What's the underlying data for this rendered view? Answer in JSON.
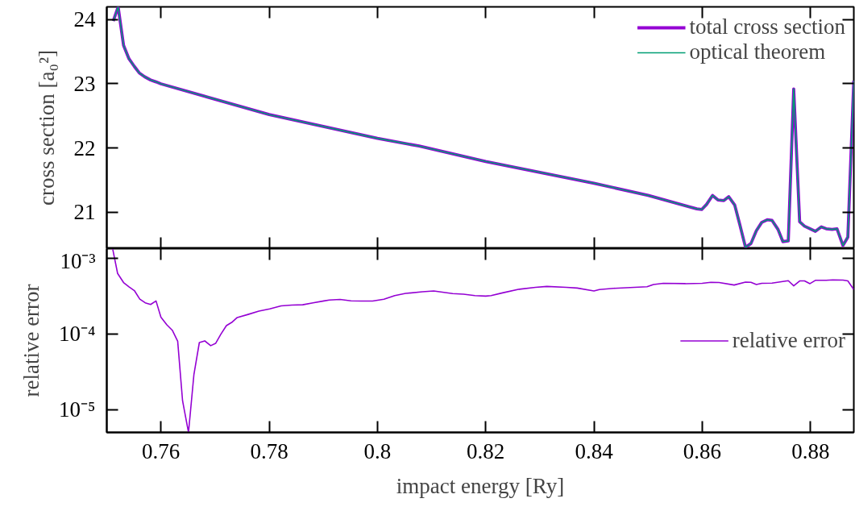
{
  "chart_data": [
    {
      "type": "line",
      "ylabel": "cross section [a₀²]",
      "xlim": [
        0.75,
        0.888
      ],
      "ylim": [
        20.43,
        24.2
      ],
      "xticks": [
        0.76,
        0.78,
        0.8,
        0.82,
        0.84,
        0.86,
        0.88
      ],
      "yticks": [
        21,
        22,
        23,
        24
      ],
      "tick_labels": "y",
      "legend": "top right",
      "grid": false,
      "x": [
        0.7512,
        0.7521,
        0.7531,
        0.7541,
        0.7551,
        0.756,
        0.757,
        0.7581,
        0.7591,
        0.76,
        0.78,
        0.8,
        0.8077,
        0.82,
        0.84,
        0.85,
        0.859,
        0.8599,
        0.8608,
        0.8619,
        0.8629,
        0.864,
        0.8649,
        0.866,
        0.8669,
        0.868,
        0.869,
        0.87,
        0.871,
        0.872,
        0.8729,
        0.874,
        0.8749,
        0.8759,
        0.8769,
        0.878,
        0.8789,
        0.8799,
        0.8809,
        0.882,
        0.8829,
        0.884,
        0.8849,
        0.886,
        0.8869,
        0.888
      ],
      "series": [
        {
          "name": "total cross section",
          "color": "#9400d3",
          "values": [
            23.98,
            24.2,
            23.6,
            23.39,
            23.27,
            23.17,
            23.11,
            23.06,
            23.03,
            23.0,
            22.52,
            22.15,
            22.03,
            21.79,
            21.45,
            21.26,
            21.05,
            21.04,
            21.12,
            21.26,
            21.19,
            21.18,
            21.24,
            21.11,
            20.82,
            20.45,
            20.51,
            20.71,
            20.84,
            20.88,
            20.87,
            20.73,
            20.54,
            20.55,
            22.92,
            20.85,
            20.78,
            20.74,
            20.7,
            20.77,
            20.74,
            20.73,
            20.74,
            20.48,
            20.61,
            23.05
          ]
        },
        {
          "name": "optical theorem",
          "color": "#009e73",
          "values": [
            23.98,
            24.2,
            23.6,
            23.39,
            23.27,
            23.17,
            23.11,
            23.06,
            23.03,
            23.0,
            22.52,
            22.15,
            22.03,
            21.79,
            21.45,
            21.26,
            21.05,
            21.04,
            21.12,
            21.26,
            21.19,
            21.18,
            21.24,
            21.11,
            20.82,
            20.45,
            20.51,
            20.71,
            20.84,
            20.88,
            20.87,
            20.73,
            20.54,
            20.55,
            22.92,
            20.85,
            20.78,
            20.74,
            20.7,
            20.77,
            20.74,
            20.73,
            20.74,
            20.48,
            20.61,
            23.05
          ]
        }
      ]
    },
    {
      "type": "line",
      "xlabel": "impact energy [Ry]",
      "ylabel": "relative error",
      "log": "y",
      "xlim": [
        0.75,
        0.888
      ],
      "ylim": [
        5e-06,
        0.00134
      ],
      "xticks": [
        0.76,
        0.78,
        0.8,
        0.82,
        0.84,
        0.86,
        0.88
      ],
      "yticks": [
        {
          "value": 1e-05,
          "label": "10⁻⁵"
        },
        {
          "value": 0.0001,
          "label": "10⁻⁴"
        },
        {
          "value": 0.001,
          "label": "10⁻³"
        }
      ],
      "legend": "right",
      "grid": false,
      "x": [
        0.7511,
        0.752,
        0.7531,
        0.7541,
        0.7551,
        0.7561,
        0.7571,
        0.7581,
        0.7591,
        0.76,
        0.7611,
        0.7621,
        0.7631,
        0.764,
        0.7651,
        0.7661,
        0.7671,
        0.7681,
        0.7692,
        0.7701,
        0.7711,
        0.7721,
        0.7732,
        0.7741,
        0.7761,
        0.7781,
        0.7801,
        0.7822,
        0.7842,
        0.7862,
        0.7881,
        0.7901,
        0.7911,
        0.7931,
        0.7951,
        0.797,
        0.7991,
        0.8012,
        0.8032,
        0.8052,
        0.8083,
        0.8104,
        0.8139,
        0.8159,
        0.818,
        0.82,
        0.821,
        0.8231,
        0.8262,
        0.8292,
        0.8313,
        0.8349,
        0.8369,
        0.84,
        0.841,
        0.8436,
        0.8467,
        0.8498,
        0.851,
        0.8528,
        0.8569,
        0.86,
        0.8616,
        0.8631,
        0.8659,
        0.868,
        0.869,
        0.87,
        0.871,
        0.8729,
        0.8759,
        0.8769,
        0.878,
        0.8789,
        0.8799,
        0.8809,
        0.8829,
        0.8841,
        0.886,
        0.8869,
        0.888
      ],
      "series": [
        {
          "name": "relative error",
          "color": "#9400d3",
          "values": [
            0.00132,
            0.00063,
            0.000478,
            0.00042,
            0.000374,
            0.000288,
            0.000258,
            0.000245,
            0.000273,
            0.000167,
            0.000132,
            0.000112,
            8e-05,
            1.31e-05,
            5e-06,
            2.92e-05,
            7.7e-05,
            8.1e-05,
            7e-05,
            7.5e-05,
            0.0001,
            0.000129,
            0.000144,
            0.000165,
            0.000181,
            0.0002,
            0.000214,
            0.000235,
            0.000241,
            0.000243,
            0.000258,
            0.000273,
            0.000281,
            0.000286,
            0.000274,
            0.000272,
            0.000272,
            0.000288,
            0.000321,
            0.000343,
            0.000361,
            0.00037,
            0.000341,
            0.000335,
            0.000321,
            0.000316,
            0.000321,
            0.000349,
            0.00039,
            0.000413,
            0.000425,
            0.000413,
            0.000404,
            0.00037,
            0.000386,
            0.0004,
            0.00041,
            0.00042,
            0.00045,
            0.000466,
            0.000462,
            0.000466,
            0.000481,
            0.000478,
            0.000443,
            0.000485,
            0.000481,
            0.00045,
            0.000466,
            0.00047,
            0.000506,
            0.000432,
            0.000502,
            0.000502,
            0.000462,
            0.000511,
            0.000511,
            0.000519,
            0.000515,
            0.000502,
            0.000386
          ]
        }
      ]
    }
  ]
}
